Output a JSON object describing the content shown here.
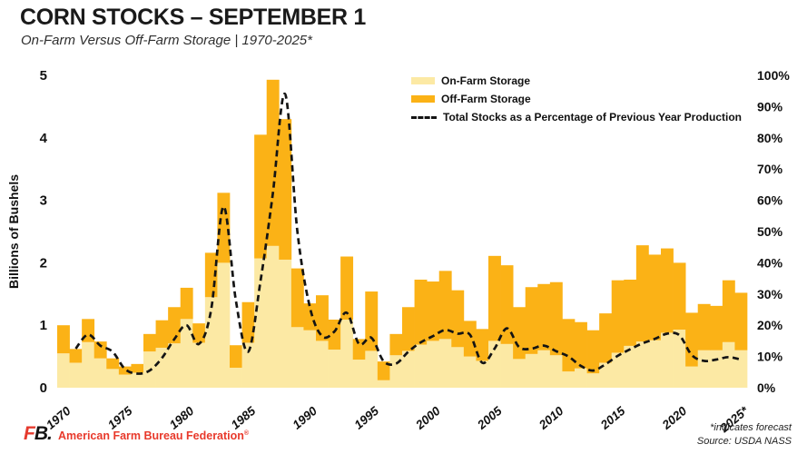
{
  "header": {
    "title": "CORN STOCKS – SEPTEMBER 1",
    "subtitle": "On-Farm Versus Off-Farm Storage | 1970-2025*"
  },
  "colors": {
    "on_farm": "#fce9a4",
    "off_farm": "#fbb216",
    "line": "#141414",
    "accent_red": "#e8392b",
    "text": "#111111"
  },
  "chart_data": {
    "type": "bar",
    "subtype": "stacked-bars-with-percent-line",
    "x": [
      1970,
      1971,
      1972,
      1973,
      1974,
      1975,
      1976,
      1977,
      1978,
      1979,
      1980,
      1981,
      1982,
      1983,
      1984,
      1985,
      1986,
      1987,
      1988,
      1989,
      1990,
      1991,
      1992,
      1993,
      1994,
      1995,
      1996,
      1997,
      1998,
      1999,
      2000,
      2001,
      2002,
      2003,
      2004,
      2005,
      2006,
      2007,
      2008,
      2009,
      2010,
      2011,
      2012,
      2013,
      2014,
      2015,
      2016,
      2017,
      2018,
      2019,
      2020,
      2021,
      2022,
      2023,
      2024,
      2025
    ],
    "series": [
      {
        "name": "On-Farm Storage",
        "type": "bar",
        "stack": "stocks",
        "color": "#fce9a4",
        "values": [
          0.55,
          0.4,
          0.73,
          0.47,
          0.3,
          0.21,
          0.24,
          0.58,
          0.64,
          0.71,
          1.1,
          0.72,
          1.45,
          2.0,
          0.32,
          0.72,
          2.07,
          2.27,
          2.05,
          0.97,
          0.92,
          0.75,
          0.61,
          1.09,
          0.45,
          0.59,
          0.12,
          0.52,
          0.59,
          0.69,
          0.75,
          0.78,
          0.65,
          0.5,
          0.43,
          0.75,
          0.7,
          0.46,
          0.54,
          0.6,
          0.52,
          0.26,
          0.31,
          0.23,
          0.4,
          0.56,
          0.67,
          0.74,
          0.76,
          0.88,
          0.93,
          0.34,
          0.6,
          0.6,
          0.73,
          0.6
        ]
      },
      {
        "name": "Off-Farm Storage",
        "type": "bar",
        "stack": "stocks",
        "color": "#fbb216",
        "values": [
          0.45,
          0.22,
          0.37,
          0.27,
          0.17,
          0.13,
          0.14,
          0.28,
          0.44,
          0.58,
          0.5,
          0.31,
          0.71,
          1.12,
          0.36,
          0.65,
          1.98,
          2.66,
          2.25,
          0.94,
          0.43,
          0.73,
          0.48,
          1.01,
          0.33,
          0.95,
          0.3,
          0.34,
          0.7,
          1.04,
          0.95,
          1.09,
          0.91,
          0.57,
          0.51,
          1.36,
          1.26,
          0.83,
          1.07,
          1.06,
          1.17,
          0.84,
          0.74,
          0.69,
          0.79,
          1.16,
          1.06,
          1.54,
          1.37,
          1.35,
          1.07,
          0.86,
          0.74,
          0.71,
          0.99,
          0.92
        ]
      },
      {
        "name": "Total Stocks as a Percentage of Previous Year Production",
        "type": "line",
        "axis": "right",
        "color": "#141414",
        "dashed": true,
        "values": [
          null,
          12.5,
          17,
          13.5,
          11.5,
          6,
          4.5,
          5.5,
          9.5,
          15.5,
          20,
          14,
          25,
          58,
          28,
          11.5,
          34,
          62,
          94,
          50,
          26,
          16.5,
          18,
          24,
          14,
          16,
          8.5,
          7.7,
          11.5,
          14.5,
          16.5,
          18.5,
          17.3,
          17,
          8,
          12.5,
          19,
          13,
          12.5,
          13.5,
          11.7,
          10,
          7,
          5.5,
          7.5,
          10.2,
          12.3,
          14.2,
          15.6,
          17.3,
          16.8,
          10.5,
          8.6,
          9,
          9.8,
          9
        ]
      }
    ],
    "left_axis": {
      "title": "Billions of Bushels",
      "ticks": [
        0,
        1,
        2,
        3,
        4,
        5
      ],
      "range": [
        0,
        5
      ]
    },
    "right_axis": {
      "ticks": [
        "0%",
        "10%",
        "20%",
        "30%",
        "40%",
        "50%",
        "60%",
        "70%",
        "80%",
        "90%",
        "100%"
      ],
      "range": [
        0,
        100
      ]
    },
    "x_ticks": [
      "1970",
      "1975",
      "1980",
      "1985",
      "1990",
      "1995",
      "2000",
      "2005",
      "2010",
      "2015",
      "2020",
      "2025*"
    ],
    "grid": false,
    "legend_position": "top-right"
  },
  "legend": {
    "items": [
      {
        "label": "On-Farm Storage"
      },
      {
        "label": "Off-Farm Storage"
      },
      {
        "label": "Total Stocks as a Percentage of Previous Year Production"
      }
    ]
  },
  "footer": {
    "logo_f": "F",
    "logo_b": "B",
    "logo_dot": ".",
    "org": "American Farm Bureau Federation",
    "org_reg": "®",
    "note_forecast": "*indicates forecast",
    "note_source": "Source: USDA NASS"
  }
}
